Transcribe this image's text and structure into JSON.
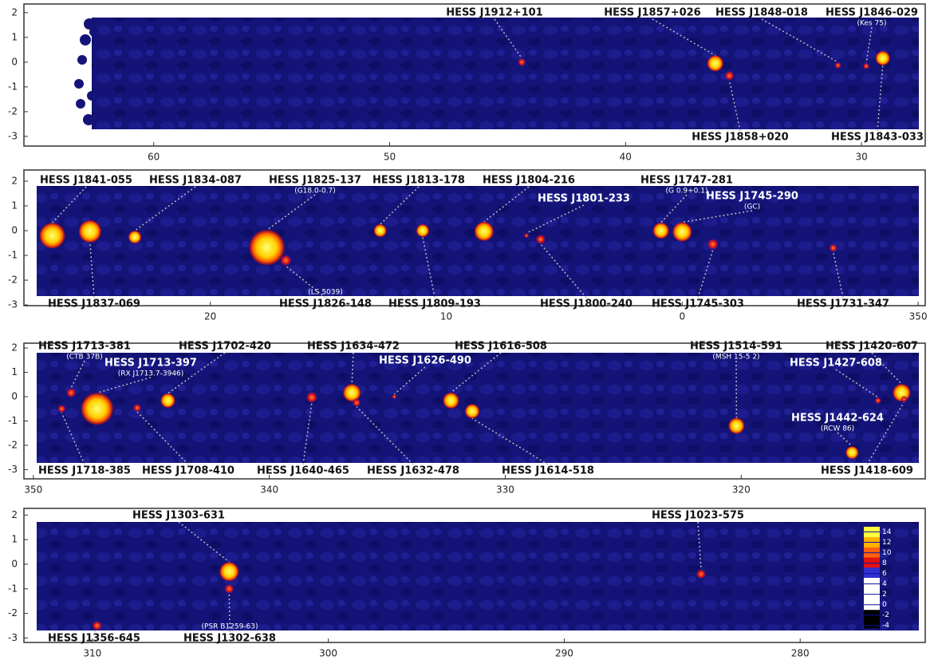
{
  "chart_data": [
    {
      "type": "skymap",
      "xlim": [
        65.5,
        27.3
      ],
      "ylim": [
        -3.39,
        2.35
      ],
      "xticks": [
        60,
        50,
        40,
        30
      ],
      "yticks": [
        -3,
        -2,
        -1,
        0,
        1,
        2
      ],
      "sources": [
        {
          "name": "HESS J1912+101",
          "l": 44.4,
          "b": 0.0
        },
        {
          "name": "HESS J1857+026",
          "l": 36.2,
          "b": -0.05
        },
        {
          "name": "HESS J1848-018",
          "l": 31.0,
          "b": -0.13
        },
        {
          "name": "HESS J1846-029",
          "note": "(Kes 75)",
          "l": 29.8,
          "b": -0.16
        },
        {
          "name": "HESS J1858+020",
          "l": 35.6,
          "b": -0.55
        },
        {
          "name": "HESS J1843-033",
          "l": 29.1,
          "b": 0.16
        }
      ]
    },
    {
      "type": "skymap",
      "xlim": [
        27.9,
        -10.3
      ],
      "ylim": [
        -3.03,
        2.45
      ],
      "xticks": [
        20,
        10,
        0,
        {
          "value": -10,
          "label": "350"
        }
      ],
      "yticks": [
        -3,
        -2,
        -1,
        0,
        1,
        2
      ],
      "sources": [
        {
          "name": "HESS J1841-055",
          "l": 26.7,
          "b": -0.2
        },
        {
          "name": "HESS J1834-087",
          "l": 23.2,
          "b": -0.26
        },
        {
          "name": "HESS J1825-137",
          "note": "(G18.0-0.7)",
          "l": 17.6,
          "b": -0.68
        },
        {
          "name": "HESS J1813-178",
          "l": 12.8,
          "b": 0.0
        },
        {
          "name": "HESS J1804-216",
          "l": 8.4,
          "b": -0.03
        },
        {
          "name": "HESS J1801-233",
          "l": 6.6,
          "b": -0.2
        },
        {
          "name": "HESS J1747-281",
          "note": "(G 0.9+0.1)",
          "l": 0.9,
          "b": 0.0
        },
        {
          "name": "HESS J1745-290",
          "note": "(GC)",
          "l": 0.0,
          "b": -0.05
        },
        {
          "name": "HESS J1837-069",
          "l": 25.1,
          "b": -0.03
        },
        {
          "name": "HESS J1826-148",
          "note": "(LS 5039)",
          "l": 16.8,
          "b": -1.2
        },
        {
          "name": "HESS J1809-193",
          "l": 11.0,
          "b": 0.0
        },
        {
          "name": "HESS J1800-240",
          "l": 6.0,
          "b": -0.35
        },
        {
          "name": "HESS J1745-303",
          "l": -1.3,
          "b": -0.55
        },
        {
          "name": "HESS J1731-347",
          "l": -6.4,
          "b": -0.7
        }
      ]
    },
    {
      "type": "skymap",
      "xlim": [
        350.4,
        312.2
      ],
      "ylim": [
        -3.38,
        2.2
      ],
      "xticks": [
        350,
        340,
        330,
        320
      ],
      "yticks": [
        -3,
        -2,
        -1,
        0,
        1,
        2
      ],
      "sources": [
        {
          "name": "HESS J1713-381",
          "note": "(CTB 37B)",
          "l": 348.4,
          "b": 0.16
        },
        {
          "name": "HESS J1713-397",
          "note": "(RX J1713.7-3946)",
          "l": 347.3,
          "b": -0.5
        },
        {
          "name": "HESS J1702-420",
          "l": 344.3,
          "b": -0.16
        },
        {
          "name": "HESS J1634-472",
          "l": 336.5,
          "b": 0.16
        },
        {
          "name": "HESS J1626-490",
          "l": 334.7,
          "b": 0.0
        },
        {
          "name": "HESS J1616-508",
          "l": 332.3,
          "b": -0.16
        },
        {
          "name": "HESS J1514-591",
          "note": "(MSH 15-5 2)",
          "l": 320.2,
          "b": -1.2
        },
        {
          "name": "HESS J1420-607",
          "l": 313.2,
          "b": 0.16
        },
        {
          "name": "HESS J1427-608",
          "l": 314.2,
          "b": -0.16
        },
        {
          "name": "HESS J1442-624",
          "note": "(RCW 86)",
          "l": 315.3,
          "b": -2.3
        },
        {
          "name": "HESS J1718-385",
          "l": 348.8,
          "b": -0.5
        },
        {
          "name": "HESS J1708-410",
          "l": 345.6,
          "b": -0.46
        },
        {
          "name": "HESS J1640-465",
          "l": 338.2,
          "b": -0.03
        },
        {
          "name": "HESS J1632-478",
          "l": 336.3,
          "b": -0.25
        },
        {
          "name": "HESS J1614-518",
          "l": 331.4,
          "b": -0.6
        },
        {
          "name": "HESS J1418-609",
          "l": 313.1,
          "b": -0.1
        }
      ]
    },
    {
      "type": "skymap",
      "xlim": [
        312.9,
        274.7
      ],
      "ylim": [
        -3.18,
        2.27
      ],
      "xticks": [
        310,
        300,
        290,
        280
      ],
      "yticks": [
        -3,
        -2,
        -1,
        0,
        1,
        2
      ],
      "sources": [
        {
          "name": "HESS J1303-631",
          "l": 304.2,
          "b": -0.3
        },
        {
          "name": "HESS J1023-575",
          "l": 284.2,
          "b": -0.4
        },
        {
          "name": "HESS J1356-645",
          "l": 309.8,
          "b": -2.5
        },
        {
          "name": "HESS J1302-638",
          "note": "(PSR B1259-63)",
          "l": 304.2,
          "b": -1.0
        }
      ],
      "colorbar": {
        "lim": [
          -4.5,
          15
        ],
        "ticks": [
          -4,
          -2,
          0,
          2,
          4,
          6,
          8,
          10,
          12,
          14
        ]
      }
    }
  ]
}
